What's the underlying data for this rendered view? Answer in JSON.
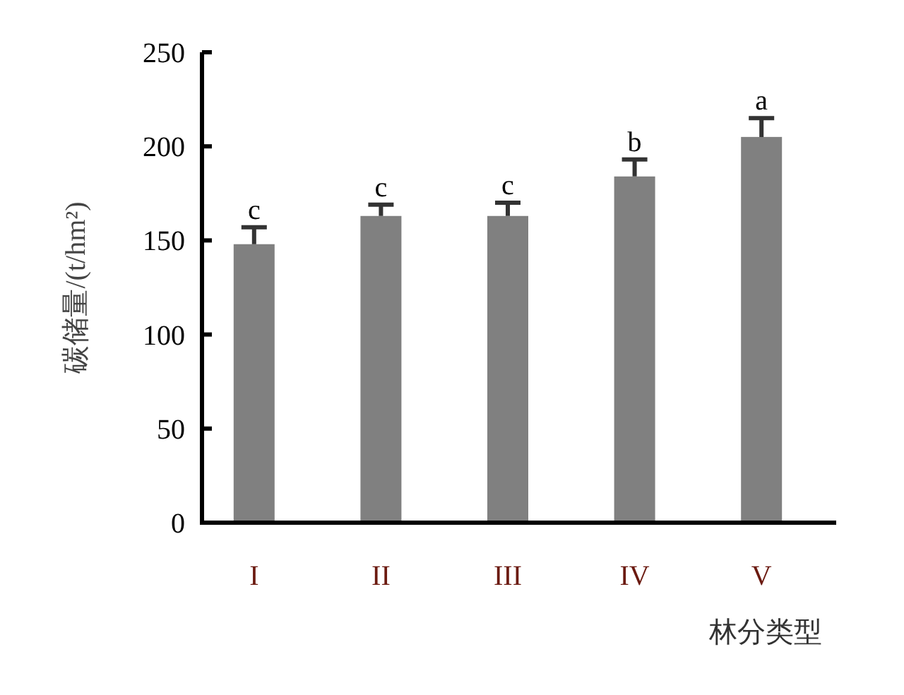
{
  "chart_data": {
    "type": "bar",
    "xlabel": "林分类型",
    "ylabel": "碳储量/(t/hm²)",
    "categories": [
      "I",
      "II",
      "III",
      "IV",
      "V"
    ],
    "values": [
      148,
      163,
      163,
      184,
      205
    ],
    "errors": [
      [
        148,
        157
      ],
      [
        163,
        169
      ],
      [
        163,
        170
      ],
      [
        184,
        193
      ],
      [
        205,
        215
      ]
    ],
    "color": "#808080",
    "ylim": [
      0,
      250
    ],
    "yticks": [
      0,
      50,
      100,
      150,
      200,
      250
    ],
    "grid": false,
    "annotations": [
      "c",
      "c",
      "c",
      "b",
      "a"
    ]
  }
}
